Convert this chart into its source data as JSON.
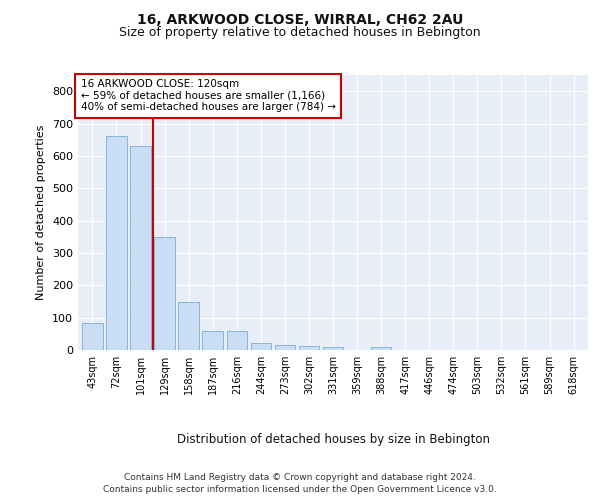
{
  "title": "16, ARKWOOD CLOSE, WIRRAL, CH62 2AU",
  "subtitle": "Size of property relative to detached houses in Bebington",
  "xlabel": "Distribution of detached houses by size in Bebington",
  "ylabel": "Number of detached properties",
  "categories": [
    "43sqm",
    "72sqm",
    "101sqm",
    "129sqm",
    "158sqm",
    "187sqm",
    "216sqm",
    "244sqm",
    "273sqm",
    "302sqm",
    "331sqm",
    "359sqm",
    "388sqm",
    "417sqm",
    "446sqm",
    "474sqm",
    "503sqm",
    "532sqm",
    "561sqm",
    "589sqm",
    "618sqm"
  ],
  "values": [
    85,
    660,
    630,
    350,
    148,
    60,
    60,
    22,
    17,
    13,
    10,
    0,
    8,
    0,
    0,
    0,
    0,
    0,
    0,
    0,
    0
  ],
  "bar_color": "#c9ddf5",
  "bar_edge_color": "#7aafd4",
  "vline_x": 2.5,
  "vline_color": "#cc0000",
  "annotation_text": "16 ARKWOOD CLOSE: 120sqm\n← 59% of detached houses are smaller (1,166)\n40% of semi-detached houses are larger (784) →",
  "annotation_box_color": "#ffffff",
  "annotation_box_edge_color": "#cc0000",
  "ylim": [
    0,
    850
  ],
  "yticks": [
    0,
    100,
    200,
    300,
    400,
    500,
    600,
    700,
    800
  ],
  "bg_color": "#e8eef8",
  "footer_line1": "Contains HM Land Registry data © Crown copyright and database right 2024.",
  "footer_line2": "Contains public sector information licensed under the Open Government Licence v3.0.",
  "title_fontsize": 10,
  "subtitle_fontsize": 9
}
